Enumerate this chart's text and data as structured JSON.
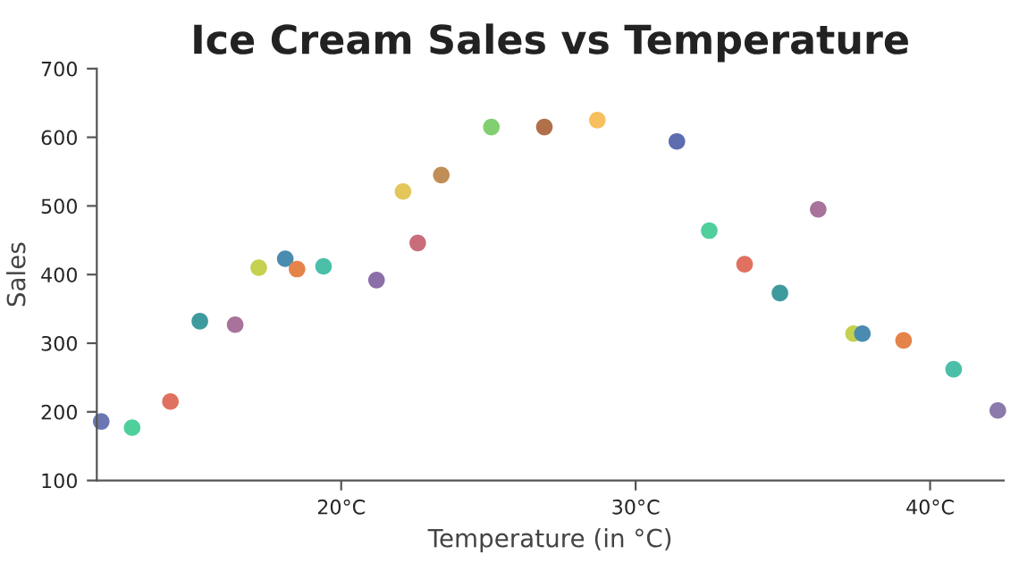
{
  "chart_data": {
    "type": "scatter",
    "title": "Ice Cream Sales vs Temperature",
    "xlabel": "Temperature (in °C)",
    "ylabel": "Sales",
    "x": [
      11.85,
      12.9,
      14.2,
      15.2,
      16.4,
      17.2,
      18.1,
      18.5,
      19.4,
      21.2,
      22.1,
      22.6,
      23.4,
      25.1,
      26.9,
      28.7,
      31.4,
      32.5,
      33.7,
      34.9,
      36.2,
      37.4,
      37.7,
      39.1,
      40.8,
      42.3
    ],
    "values": [
      186,
      177,
      215,
      332,
      327,
      410,
      423,
      408,
      412,
      392,
      521,
      446,
      545,
      615,
      615,
      625,
      594,
      464,
      415,
      373,
      495,
      314,
      314,
      304,
      262,
      202
    ],
    "colors": [
      "#6a77b3",
      "#4fcf9c",
      "#e0705f",
      "#3f9a9e",
      "#a8729a",
      "#c5d14f",
      "#4a8bb0",
      "#e5844a",
      "#4bbfa8",
      "#8b6fa8",
      "#e3c75a",
      "#c96c7b",
      "#c08f57",
      "#82cf72",
      "#b0704a",
      "#f8bf5e",
      "#5e6db0",
      "#4fcf9c",
      "#e0705f",
      "#3f9a9e",
      "#a8729a",
      "#c5d14f",
      "#4a8bb0",
      "#e5844a",
      "#4bbfa8",
      "#8b7aab"
    ],
    "xlim": [
      11.7,
      42.5
    ],
    "xticks": [
      {
        "value": 20,
        "label": "20°C"
      },
      {
        "value": 30,
        "label": "30°C"
      },
      {
        "value": 40,
        "label": "40°C"
      }
    ],
    "ylim": [
      100,
      700
    ],
    "yticks": [
      100,
      200,
      300,
      400,
      500,
      600,
      700
    ],
    "grid": false,
    "marker": "circle"
  }
}
